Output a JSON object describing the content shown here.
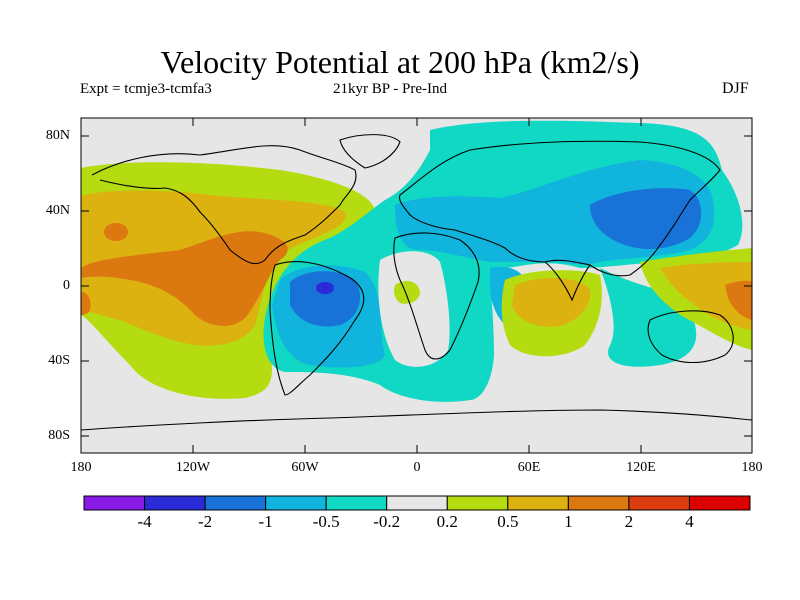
{
  "map": {
    "title": "Velocity Potential at 200 hPa (km2/s)",
    "experiment": "Expt = tcmje3-tcmfa3",
    "period": "21kyr BP - Pre-Ind",
    "season": "DJF",
    "lat_ticks": [
      "80N",
      "40N",
      "0",
      "40S",
      "80S"
    ],
    "lon_ticks": [
      "180",
      "120W",
      "60W",
      "0",
      "60E",
      "120E",
      "180"
    ],
    "background_color": "#e6e6e6"
  },
  "colorbar": {
    "colors": [
      "#8a1ae6",
      "#2a2ad6",
      "#1872d8",
      "#10b4dc",
      "#10d8c4",
      "#e6e6e6",
      "#b4dc10",
      "#dcb210",
      "#dc7810",
      "#dc3c10",
      "#dc0000"
    ],
    "labels": [
      "-4",
      "-2",
      "-1",
      "-0.5",
      "-0.2",
      "0.2",
      "0.5",
      "1",
      "2",
      "4"
    ]
  }
}
